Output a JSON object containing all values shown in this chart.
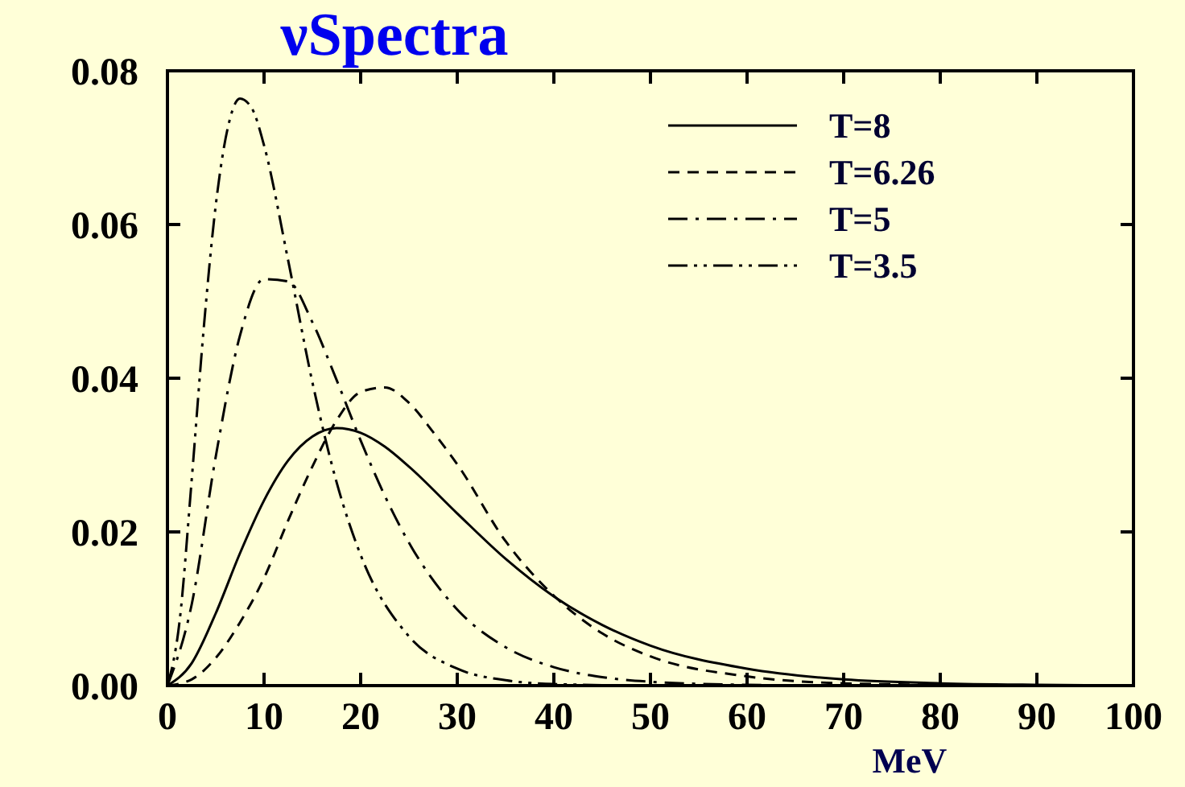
{
  "chart_data": {
    "type": "line",
    "title": "νSpectra",
    "xlabel": "MeV",
    "xlim": [
      0,
      100
    ],
    "xticks": [
      0,
      10,
      20,
      30,
      40,
      50,
      60,
      70,
      80,
      90,
      100
    ],
    "ylim": [
      0,
      0.08
    ],
    "yticks": [
      {
        "value": 0,
        "label": "0.00"
      },
      {
        "value": 0.02,
        "label": "0.02"
      },
      {
        "value": 0.04,
        "label": "0.04"
      },
      {
        "value": 0.06,
        "label": "0.06"
      },
      {
        "value": 0.08,
        "label": "0.08"
      }
    ],
    "grid": false,
    "legend": "top right",
    "marker": "none",
    "series": [
      {
        "name": "T=8",
        "color": "#000000",
        "line_style": "solid",
        "x": [
          0,
          2.5,
          5,
          7.5,
          10,
          12.5,
          15,
          17.5,
          20,
          22.5,
          25,
          30,
          35,
          40,
          45,
          50,
          60,
          70,
          80,
          90,
          100
        ],
        "values": [
          0,
          0.0029,
          0.0094,
          0.0172,
          0.0241,
          0.0293,
          0.0324,
          0.0335,
          0.0329,
          0.0311,
          0.0285,
          0.0224,
          0.0165,
          0.0116,
          0.0079,
          0.0052,
          0.0022,
          0.0008,
          0.0003,
          0.0001,
          0
        ]
      },
      {
        "name": "T=6.26",
        "color": "#000000",
        "line_style": "dashed",
        "x": [
          0,
          2.5,
          5,
          7.5,
          10,
          12.5,
          15,
          17.5,
          20,
          22.5,
          25,
          27.5,
          30,
          35,
          40,
          45,
          50,
          60,
          70,
          80,
          90
        ],
        "values": [
          0,
          0.0008,
          0.0036,
          0.0082,
          0.014,
          0.0215,
          0.0285,
          0.0345,
          0.0382,
          0.0388,
          0.0368,
          0.033,
          0.0288,
          0.0188,
          0.0117,
          0.0068,
          0.0038,
          0.0012,
          0.0003,
          0.0001,
          0
        ]
      },
      {
        "name": "T=5",
        "color": "#000000",
        "line_style": "dashdot",
        "x": [
          0,
          2.5,
          5,
          7.5,
          10,
          12.5,
          15,
          17.5,
          20,
          22.5,
          25,
          30,
          35,
          40,
          45,
          50,
          60,
          70
        ],
        "values": [
          0,
          0.0105,
          0.0298,
          0.0455,
          0.0529,
          0.0526,
          0.0473,
          0.0398,
          0.0319,
          0.0247,
          0.0186,
          0.0099,
          0.005,
          0.0024,
          0.0011,
          0.0005,
          0.0001,
          0
        ]
      },
      {
        "name": "T=3.5",
        "color": "#000000",
        "line_style": "dashdotdot",
        "x": [
          0,
          1.25,
          2.5,
          3.75,
          5,
          6.25,
          7.5,
          8.75,
          10,
          12.5,
          15,
          17.5,
          20,
          25,
          30,
          35,
          40,
          50
        ],
        "values": [
          0,
          0.0083,
          0.0266,
          0.0464,
          0.0625,
          0.0726,
          0.0764,
          0.0751,
          0.0703,
          0.0553,
          0.0395,
          0.0265,
          0.017,
          0.0064,
          0.0022,
          0.0007,
          0.0002,
          0
        ]
      }
    ]
  }
}
